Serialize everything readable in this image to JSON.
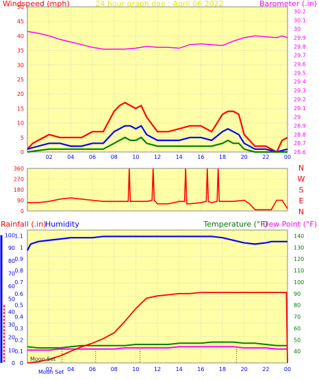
{
  "colors": {
    "bg": "#ffffff",
    "plot_bg": "#ffffa8",
    "grid": "#b8b8b8",
    "frame": "#7f7f7f",
    "red": "#ff0000",
    "dark_red": "#cc0000",
    "blue": "#0000ff",
    "green": "#008000",
    "magenta": "#ff00ff",
    "dark_green": "#007700",
    "yellow_text": "#e8e800"
  },
  "chart_data": [
    {
      "panel": "wind-barometer",
      "type": "line",
      "title": "24 hour graph dae : April 06 2022",
      "left_label": "Windspeed (mph)",
      "right_label": "Barometer (.in)",
      "x_ticks": [
        "02",
        "04",
        "06",
        "08",
        "10",
        "12",
        "14",
        "16",
        "18",
        "20",
        "22",
        "00"
      ],
      "left_ticks": [
        "0",
        "5",
        "10",
        "15",
        "20",
        "25",
        "30",
        "35",
        "40",
        "45",
        "50"
      ],
      "right_ticks": [
        "28.6",
        "28.7",
        "28.8",
        "28.9",
        "29",
        "29.1",
        "29.2",
        "29.3",
        "29.4",
        "29.5",
        "29.6",
        "29.7",
        "29.8",
        "29.9",
        "30",
        "30.1",
        "30.2"
      ],
      "left_range": [
        0,
        50
      ],
      "right_range": [
        28.6,
        30.25
      ],
      "x_range": [
        0,
        24
      ],
      "grid": true,
      "series": [
        {
          "name": "Barometer",
          "color_key": "magenta",
          "axis": "right",
          "x": [
            0,
            1,
            2,
            3,
            4,
            5,
            6,
            7,
            8,
            9,
            10,
            11,
            12,
            13,
            14,
            15,
            16,
            17,
            18,
            19,
            20,
            21,
            22,
            23,
            23.5,
            24
          ],
          "y": [
            29.97,
            29.95,
            29.92,
            29.88,
            29.85,
            29.82,
            29.79,
            29.77,
            29.77,
            29.77,
            29.78,
            29.8,
            29.79,
            29.79,
            29.78,
            29.82,
            29.83,
            29.82,
            29.81,
            29.86,
            29.9,
            29.92,
            29.91,
            29.9,
            29.92,
            29.9
          ]
        },
        {
          "name": "Wind gust",
          "color_key": "red",
          "axis": "left",
          "x": [
            0,
            0.5,
            1,
            2,
            3,
            4,
            5,
            6,
            7,
            8,
            8.5,
            9,
            9.5,
            10,
            10.5,
            11,
            12,
            13,
            14,
            15,
            16,
            17,
            18,
            18.5,
            19,
            19.5,
            20,
            21,
            22,
            23,
            23.5,
            24
          ],
          "y": [
            1,
            3,
            4,
            6,
            5,
            5,
            5,
            7,
            7,
            14,
            16,
            17,
            16,
            15,
            16,
            12,
            7,
            7,
            8,
            9,
            9,
            7,
            13,
            14,
            14,
            13,
            6,
            2,
            2,
            0,
            4,
            5
          ]
        },
        {
          "name": "Wind avg",
          "color_key": "blue",
          "axis": "left",
          "x": [
            0,
            1,
            2,
            3,
            4,
            5,
            6,
            7,
            8,
            8.5,
            9,
            9.5,
            10,
            10.5,
            11,
            12,
            13,
            14,
            15,
            16,
            17,
            18,
            18.5,
            19,
            19.5,
            20,
            21,
            22,
            23,
            24
          ],
          "y": [
            1,
            2,
            3,
            3,
            2,
            2,
            3,
            3,
            7,
            8,
            9,
            9,
            8,
            9,
            6,
            4,
            4,
            4,
            5,
            5,
            4,
            7,
            8,
            7,
            6,
            3,
            1,
            1,
            0,
            1
          ]
        },
        {
          "name": "Wind low",
          "color_key": "green",
          "axis": "left",
          "x": [
            0,
            1,
            2,
            3,
            4,
            5,
            6,
            7,
            8,
            8.5,
            9,
            9.5,
            10,
            10.5,
            11,
            12,
            13,
            14,
            15,
            16,
            17,
            18,
            18.5,
            19,
            19.5,
            20,
            21,
            22,
            23,
            24
          ],
          "y": [
            0,
            0.5,
            1,
            1,
            1,
            1,
            1,
            1,
            3,
            4,
            5,
            4,
            4,
            5,
            3,
            2,
            2,
            2,
            2,
            2,
            2,
            3,
            4,
            3,
            3,
            1,
            0,
            0,
            0,
            0
          ]
        }
      ]
    },
    {
      "panel": "wind-direction",
      "type": "line",
      "right_label_letters": [
        "N",
        "W",
        "S",
        "E",
        "N"
      ],
      "left_ticks": [
        "0",
        "90",
        "180",
        "270",
        "360"
      ],
      "left_range": [
        0,
        360
      ],
      "x_range": [
        0,
        24
      ],
      "grid": true,
      "series": [
        {
          "name": "Wind direction",
          "color_key": "red",
          "axis": "left",
          "x": [
            0,
            1,
            2,
            3,
            4,
            5,
            6,
            7,
            8,
            9,
            9.3,
            9.4,
            9.5,
            10,
            11,
            11.5,
            11.6,
            11.7,
            12,
            13,
            14,
            14.5,
            14.6,
            14.7,
            15,
            16,
            16.5,
            16.6,
            16.7,
            17,
            17.5,
            17.6,
            17.7,
            18,
            19,
            20,
            20.5,
            21,
            22,
            22.5,
            23,
            23.5,
            24
          ],
          "y": [
            70,
            70,
            80,
            100,
            110,
            100,
            90,
            80,
            80,
            80,
            80,
            360,
            80,
            80,
            80,
            90,
            360,
            90,
            60,
            60,
            80,
            80,
            360,
            60,
            60,
            70,
            80,
            360,
            80,
            70,
            80,
            360,
            80,
            80,
            80,
            90,
            60,
            10,
            10,
            10,
            90,
            90,
            20
          ]
        }
      ]
    },
    {
      "panel": "rain-humidity-temp",
      "type": "line",
      "left_label_rain": "Rainfall (.in)",
      "left_label_hum": "Humidity",
      "right_label_temp": "Temperature (°F)",
      "right_label_dew": "Dew Point (°F)",
      "rain_ticks": [
        "0",
        "0.1",
        "0.2",
        "0.3",
        "0.4",
        "0.5",
        "0.6",
        "0.7",
        "0.8",
        "0.9",
        "1",
        "1.1"
      ],
      "hum_ticks": [
        "0",
        "10",
        "20",
        "30",
        "40",
        "50",
        "60",
        "70",
        "80",
        "90",
        "100"
      ],
      "temp_ticks": [
        "40",
        "50",
        "60",
        "70",
        "80",
        "90",
        "100",
        "110",
        "120",
        "130",
        "140"
      ],
      "rain_range": [
        0,
        1.15
      ],
      "hum_range": [
        0,
        104
      ],
      "temp_range": [
        30,
        145
      ],
      "x_range": [
        0,
        24
      ],
      "x_ticks": [
        "02",
        "04",
        "06",
        "08",
        "10",
        "12",
        "14",
        "16",
        "18",
        "20",
        "22",
        "00"
      ],
      "moon_set_label": "Moon Set",
      "moon_set_label_bottom": "Moon Set",
      "grid": true,
      "series": [
        {
          "name": "Humidity",
          "color_key": "blue",
          "axis": "hum",
          "x": [
            0,
            0.3,
            1,
            2,
            3,
            4,
            5,
            6,
            7,
            8,
            9,
            10,
            11,
            12,
            13,
            14,
            15,
            16,
            17,
            18,
            19,
            20,
            21,
            22,
            22.5,
            23,
            24
          ],
          "y": [
            88,
            93,
            95,
            96,
            97,
            98,
            98,
            98,
            99,
            99,
            99,
            99,
            99,
            99,
            99,
            99,
            99,
            99,
            99,
            98,
            96,
            94,
            93,
            94,
            95,
            95,
            95
          ]
        },
        {
          "name": "Temperature",
          "color_key": "green",
          "axis": "temp",
          "x": [
            0,
            1,
            2,
            3,
            4,
            5,
            6,
            7,
            8,
            9,
            10,
            11,
            12,
            13,
            14,
            15,
            16,
            17,
            18,
            19,
            20,
            21,
            22,
            23,
            24
          ],
          "y": [
            44,
            43,
            43,
            43,
            44,
            45,
            45,
            45,
            45,
            45,
            46,
            46,
            46,
            46,
            47,
            47,
            47,
            48,
            48,
            48,
            47,
            47,
            46,
            45,
            45
          ]
        },
        {
          "name": "Dew Point",
          "color_key": "magenta",
          "axis": "temp",
          "x": [
            0,
            1,
            2,
            3,
            4,
            5,
            6,
            7,
            8,
            9,
            10,
            11,
            12,
            13,
            14,
            15,
            16,
            17,
            18,
            19,
            20,
            21,
            22,
            23,
            24
          ],
          "y": [
            41,
            41,
            41,
            42,
            42,
            42,
            42,
            42,
            42,
            43,
            43,
            43,
            43,
            43,
            44,
            44,
            44,
            44,
            44,
            44,
            43,
            43,
            43,
            42,
            42
          ]
        },
        {
          "name": "Rainfall",
          "color_key": "red",
          "axis": "rain",
          "x": [
            0,
            1,
            2,
            3,
            3.5,
            4,
            5,
            6,
            7,
            8,
            9,
            10,
            11,
            12,
            13,
            14,
            15,
            16,
            17,
            18,
            19,
            20,
            21,
            22,
            23,
            23.9,
            24
          ],
          "y": [
            0,
            0.01,
            0.03,
            0.06,
            0.08,
            0.1,
            0.14,
            0.17,
            0.21,
            0.26,
            0.36,
            0.47,
            0.56,
            0.58,
            0.59,
            0.6,
            0.6,
            0.61,
            0.61,
            0.61,
            0.61,
            0.61,
            0.61,
            0.61,
            0.61,
            0.61,
            0.0
          ]
        }
      ]
    }
  ]
}
